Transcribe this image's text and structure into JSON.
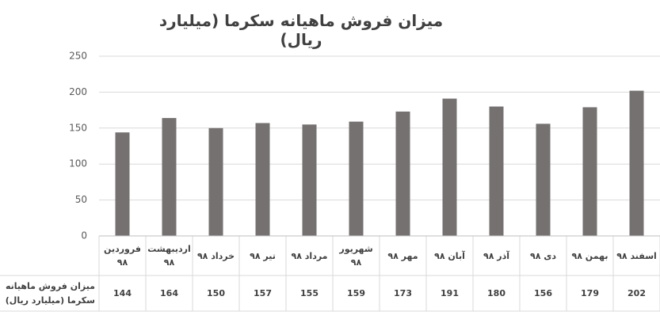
{
  "chart_data": {
    "type": "bar",
    "title": "میزان فروش ماهیانه سکرما (میلیارد ریال)",
    "categories": [
      "فروردین ۹۸",
      "اردیبهشت ۹۸",
      "خرداد ۹۸",
      "تیر ۹۸",
      "مرداد ۹۸",
      "شهریور ۹۸",
      "مهر ۹۸",
      "آبان ۹۸",
      "آذر ۹۸",
      "دی ۹۸",
      "بهمن ۹۸",
      "اسفند ۹۸"
    ],
    "values": [
      144,
      164,
      150,
      157,
      155,
      159,
      173,
      191,
      180,
      156,
      179,
      202
    ],
    "color": "#767171",
    "ylim": [
      0,
      250
    ],
    "yticks": [
      0,
      50,
      100,
      150,
      200,
      250
    ],
    "grid": true,
    "data_table_label": "میزان فروش ماهیانه سکرما (میلیارد ریال)"
  }
}
